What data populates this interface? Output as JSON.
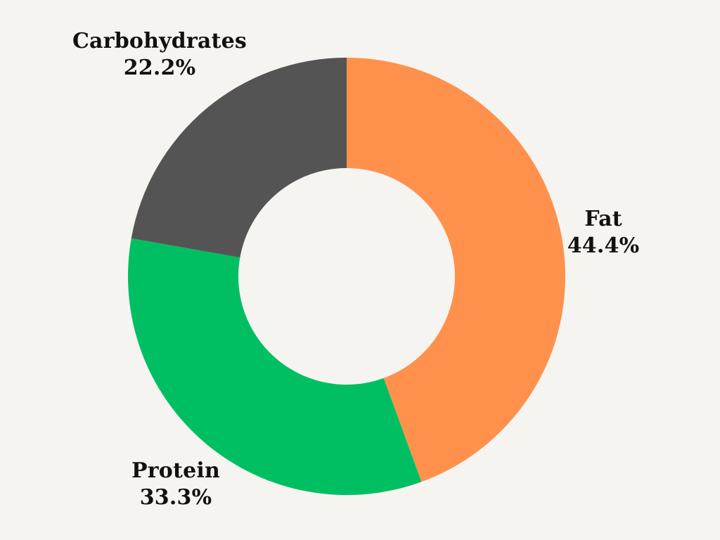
{
  "chart_data": {
    "type": "pie",
    "subtype": "donut",
    "categories": [
      "Fat",
      "Protein",
      "Carbohydrates"
    ],
    "values": [
      44.4,
      33.3,
      22.2
    ],
    "unit": "%",
    "colors": [
      "#FF914D",
      "#00BF63",
      "#545454"
    ],
    "data_labels": [
      "Fat 44.4%",
      "Protein 33.3%",
      "Carbohydrates 22.2%"
    ],
    "title": "",
    "start_angle_deg": 0,
    "direction": "clockwise",
    "legend_position": "none",
    "background_color": "#F5F4F1",
    "label_text_color": "#111111"
  },
  "labels": {
    "fat": {
      "name": "Fat",
      "pct": "44.4%"
    },
    "protein": {
      "name": "Protein",
      "pct": "33.3%"
    },
    "carbohydrates": {
      "name": "Carbohydrates",
      "pct": "22.2%"
    }
  }
}
